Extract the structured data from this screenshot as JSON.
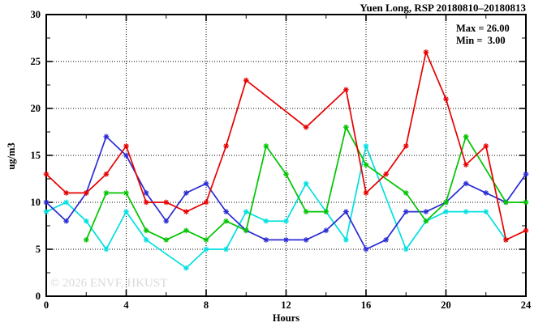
{
  "title": "Yuen Long, RSP 20180810–20180813",
  "annotation": {
    "max_label": "Max = 26.00",
    "min_label": "Min =  3.00"
  },
  "watermark": "© 2026 ENVF, HKUST",
  "chart_data": {
    "type": "line",
    "title": "Yuen Long, RSP 20180810–20180813",
    "xlabel": "Hours",
    "ylabel": "ug/m3",
    "xlim": [
      0,
      24
    ],
    "ylim": [
      0,
      30
    ],
    "x_major_ticks": [
      0,
      4,
      8,
      12,
      16,
      20,
      24
    ],
    "x_minor_ticks": [
      2,
      6,
      10,
      14,
      18,
      22
    ],
    "y_major_ticks": [
      0,
      5,
      10,
      15,
      20,
      25,
      30
    ],
    "y_minor_ticks": [
      2.5,
      7.5,
      12.5,
      17.5,
      22.5,
      27.5
    ],
    "grid": "dotted lines at major ticks, frame with mirrored inward ticks",
    "legend_position": "none",
    "marker": "asterisk",
    "stats": {
      "max": 26.0,
      "min": 3.0
    },
    "x": [
      0,
      1,
      2,
      3,
      4,
      5,
      6,
      7,
      8,
      9,
      10,
      11,
      12,
      13,
      14,
      15,
      16,
      17,
      18,
      19,
      20,
      21,
      22,
      23,
      24
    ],
    "series": [
      {
        "name": "cyan",
        "color": "#00e0e0",
        "values": [
          9,
          10,
          8,
          5,
          9,
          6,
          null,
          3,
          5,
          5,
          9,
          8,
          8,
          12,
          9,
          6,
          16,
          null,
          5,
          8,
          9,
          9,
          9,
          6,
          null
        ]
      },
      {
        "name": "blue",
        "color": "#2a2ad4",
        "values": [
          10,
          8,
          11,
          17,
          15,
          11,
          8,
          11,
          12,
          9,
          7,
          6,
          6,
          6,
          7,
          9,
          5,
          6,
          9,
          9,
          10,
          12,
          11,
          10,
          13
        ]
      },
      {
        "name": "green",
        "color": "#00c400",
        "values": [
          null,
          null,
          6,
          11,
          11,
          7,
          6,
          7,
          6,
          8,
          7,
          16,
          13,
          9,
          9,
          18,
          14,
          null,
          11,
          8,
          10,
          17,
          null,
          10,
          10
        ]
      },
      {
        "name": "red",
        "color": "#e60000",
        "values": [
          13,
          11,
          11,
          13,
          16,
          10,
          10,
          9,
          10,
          16,
          23,
          null,
          null,
          18,
          null,
          22,
          11,
          13,
          16,
          26,
          21,
          14,
          16,
          6,
          7
        ]
      }
    ]
  }
}
